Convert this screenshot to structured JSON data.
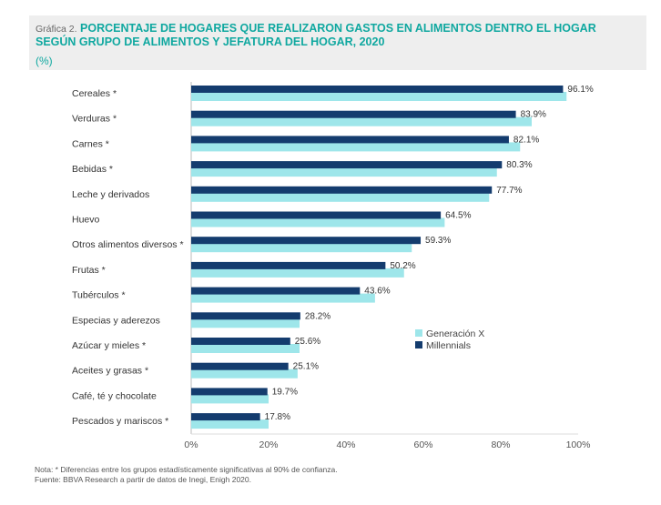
{
  "header": {
    "prefix": "Gráfica 2.",
    "title_line1": "PORCENTAJE DE HOGARES QUE REALIZARON GASTOS EN ALIMENTOS DENTRO EL HOGAR",
    "title_line2": "SEGÚN GRUPO DE ALIMENTOS Y JEFATURA DEL HOGAR, 2020",
    "unit": "(%)"
  },
  "notes": {
    "note": "Nota: * Diferencias entre los grupos estadísticamente significativas al 90% de confianza.",
    "source": "Fuente: BBVA Research a partir de datos de Inegi, Enigh 2020."
  },
  "colors": {
    "millennials": "#143c6e",
    "generacion_x": "#9ee6ea",
    "title": "#10a8a0"
  },
  "chart_data": {
    "type": "bar",
    "orientation": "horizontal",
    "categories": [
      "Cereales *",
      "Verduras *",
      "Carnes *",
      "Bebidas *",
      "Leche y derivados",
      "Huevo",
      "Otros alimentos diversos *",
      "Frutas *",
      "Tubérculos *",
      "Especias y aderezos",
      "Azúcar y mieles *",
      "Aceites y grasas *",
      "Café, té y chocolate",
      "Pescados y mariscos *"
    ],
    "series": [
      {
        "name": "Millennials",
        "values": [
          96.1,
          83.9,
          82.1,
          80.3,
          77.7,
          64.5,
          59.3,
          50.2,
          43.6,
          28.2,
          25.6,
          25.1,
          19.7,
          17.8
        ],
        "value_labels": [
          "96.1%",
          "83.9%",
          "82.1%",
          "80.3%",
          "77.7%",
          "64.5%",
          "59.3%",
          "50.2%",
          "43.6%",
          "28.2%",
          "25.6%",
          "25.1%",
          "19.7%",
          "17.8%"
        ]
      },
      {
        "name": "Generación X",
        "values": [
          97.0,
          88.0,
          85.0,
          79.0,
          77.0,
          65.5,
          57.0,
          55.0,
          47.5,
          28.0,
          28.0,
          27.5,
          20.0,
          20.0
        ]
      }
    ],
    "xlim": [
      0,
      100
    ],
    "xticks": [
      "0%",
      "20%",
      "40%",
      "60%",
      "80%",
      "100%"
    ],
    "legend": [
      "Generación X",
      "Millennials"
    ],
    "legend_position": "right-middle",
    "grid": false
  }
}
